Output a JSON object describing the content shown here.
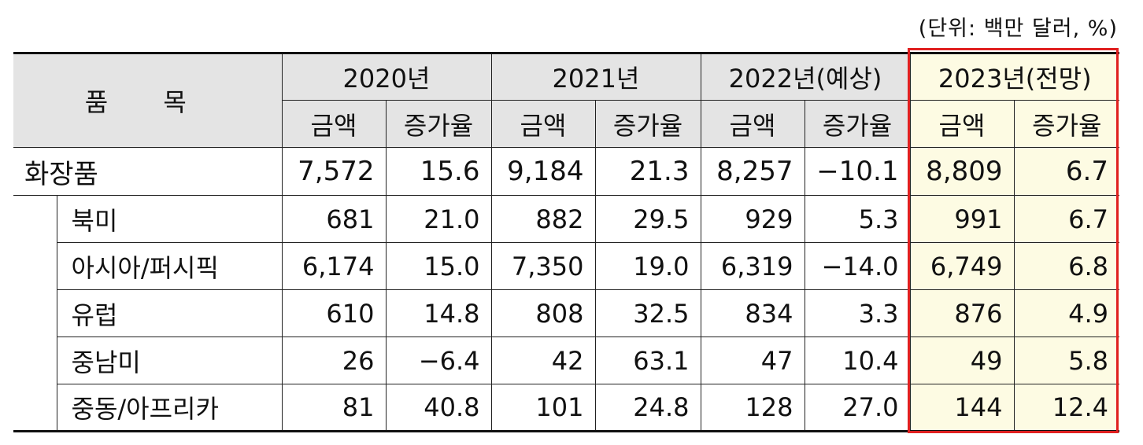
{
  "unit_note": "(단위: 백만 달러, %)",
  "header": {
    "item_label": "품  목",
    "years": [
      "2020년",
      "2021년",
      "2022년(예상)",
      "2023년(전망)"
    ],
    "amount_label": "금액",
    "growth_label": "증가율"
  },
  "rows": [
    {
      "name": "화장품",
      "values": [
        "7,572",
        "15.6",
        "9,184",
        "21.3",
        "8,257",
        "−10.1",
        "8,809",
        "6.7"
      ]
    },
    {
      "name": "북미",
      "values": [
        "681",
        "21.0",
        "882",
        "29.5",
        "929",
        "5.3",
        "991",
        "6.7"
      ]
    },
    {
      "name": "아시아/퍼시픽",
      "values": [
        "6,174",
        "15.0",
        "7,350",
        "19.0",
        "6,319",
        "−14.0",
        "6,749",
        "6.8"
      ]
    },
    {
      "name": "유럽",
      "values": [
        "610",
        "14.8",
        "808",
        "32.5",
        "834",
        "3.3",
        "876",
        "4.9"
      ]
    },
    {
      "name": "중남미",
      "values": [
        "26",
        "−6.4",
        "42",
        "63.1",
        "47",
        "10.4",
        "49",
        "5.8"
      ]
    },
    {
      "name": "중동/아프리카",
      "values": [
        "81",
        "40.8",
        "101",
        "24.8",
        "128",
        "27.0",
        "144",
        "12.4"
      ]
    }
  ],
  "colors": {
    "highlight_border": "#e02020",
    "highlight_fill": "#fdfbe3",
    "header_fill": "#e4e4e4"
  }
}
